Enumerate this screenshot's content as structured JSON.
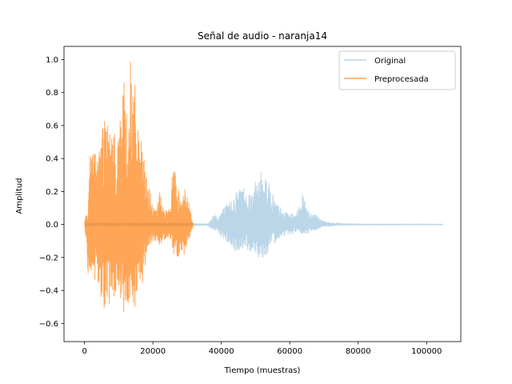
{
  "chart_data": {
    "type": "line",
    "title": "Señal de audio - naranja14",
    "xlabel": "Tiempo (muestras)",
    "ylabel": "Amplitud",
    "xlim": [
      -6000,
      110000
    ],
    "ylim": [
      -0.71,
      1.08
    ],
    "xticks": [
      0,
      20000,
      40000,
      60000,
      80000,
      100000
    ],
    "xtick_labels": [
      "0",
      "20000",
      "40000",
      "60000",
      "80000",
      "100000"
    ],
    "yticks": [
      -0.6,
      -0.4,
      -0.2,
      0.0,
      0.2,
      0.4,
      0.6,
      0.8,
      1.0
    ],
    "ytick_labels": [
      "−0.6",
      "−0.4",
      "−0.2",
      "0.0",
      "0.2",
      "0.4",
      "0.6",
      "0.8",
      "1.0"
    ],
    "grid": false,
    "legend_position": "top-right",
    "series": [
      {
        "name": "Original",
        "color": "#1f77b4",
        "alpha": 0.3,
        "x_range": [
          0,
          104800
        ],
        "envelope": {
          "x": [
            0,
            300,
            1000,
            2000,
            3000,
            5000,
            6000,
            8000,
            10000,
            12000,
            13000,
            14000,
            15000,
            16000,
            17000,
            18000,
            20000,
            22000,
            24000,
            25000,
            26000,
            28000,
            30000,
            31000,
            32000,
            33000,
            35000,
            36000,
            37000,
            38000,
            39000,
            40000,
            42000,
            44000,
            46000,
            48000,
            50000,
            51000,
            52000,
            53000,
            54000,
            55000,
            56000,
            58000,
            60000,
            62000,
            63000,
            64000,
            65000,
            66000,
            68000,
            69000,
            70000,
            72000,
            74000,
            76000,
            80000,
            85000,
            90000,
            95000,
            100000,
            104800
          ],
          "upper": [
            0.0,
            0.01,
            0.01,
            0.01,
            0.01,
            0.01,
            0.01,
            0.01,
            0.01,
            0.01,
            0.01,
            0.01,
            0.01,
            0.01,
            0.01,
            0.01,
            0.01,
            0.01,
            0.01,
            0.01,
            0.01,
            0.01,
            0.01,
            0.01,
            0.01,
            0.005,
            0.005,
            0.005,
            0.03,
            0.08,
            0.04,
            0.09,
            0.13,
            0.2,
            0.25,
            0.2,
            0.26,
            0.32,
            0.33,
            0.32,
            0.26,
            0.2,
            0.14,
            0.08,
            0.07,
            0.06,
            0.16,
            0.19,
            0.12,
            0.08,
            0.06,
            0.03,
            0.02,
            0.01,
            0.01,
            0.005,
            0.004,
            0.003,
            0.003,
            0.003,
            0.003,
            0.002
          ],
          "lower": [
            0.0,
            -0.01,
            -0.01,
            -0.01,
            -0.01,
            -0.01,
            -0.01,
            -0.01,
            -0.01,
            -0.01,
            -0.01,
            -0.01,
            -0.01,
            -0.01,
            -0.01,
            -0.01,
            -0.01,
            -0.01,
            -0.01,
            -0.01,
            -0.01,
            -0.01,
            -0.01,
            -0.01,
            -0.01,
            -0.005,
            -0.005,
            -0.005,
            -0.03,
            -0.04,
            -0.05,
            -0.08,
            -0.12,
            -0.17,
            -0.15,
            -0.16,
            -0.18,
            -0.2,
            -0.2,
            -0.2,
            -0.17,
            -0.13,
            -0.1,
            -0.07,
            -0.06,
            -0.05,
            -0.05,
            -0.07,
            -0.06,
            -0.05,
            -0.03,
            -0.02,
            -0.01,
            -0.01,
            -0.005,
            -0.004,
            -0.003,
            -0.003,
            -0.003,
            -0.002,
            -0.002,
            -0.002
          ]
        }
      },
      {
        "name": "Preprocesada",
        "color": "#ff7f0e",
        "alpha": 0.7,
        "x_range": [
          0,
          31800
        ],
        "envelope": {
          "x": [
            0,
            300,
            1000,
            1500,
            2000,
            3000,
            4000,
            5000,
            6000,
            7000,
            8000,
            9000,
            10000,
            11000,
            12000,
            12500,
            13000,
            13500,
            14000,
            15000,
            16000,
            17000,
            18000,
            19000,
            20000,
            21000,
            22000,
            23000,
            24000,
            25000,
            25500,
            26000,
            27000,
            28000,
            29000,
            30000,
            31000,
            31800
          ],
          "upper": [
            0.0,
            0.07,
            0.04,
            0.4,
            0.5,
            0.48,
            0.45,
            0.62,
            0.72,
            0.62,
            0.55,
            0.55,
            0.6,
            0.85,
            0.88,
            0.6,
            0.92,
            1.0,
            0.96,
            0.8,
            0.6,
            0.44,
            0.32,
            0.22,
            0.12,
            0.08,
            0.21,
            0.12,
            0.08,
            0.1,
            0.27,
            0.42,
            0.25,
            0.2,
            0.24,
            0.18,
            0.1,
            0.0
          ],
          "lower": [
            0.0,
            -0.07,
            -0.3,
            -0.3,
            -0.34,
            -0.38,
            -0.42,
            -0.48,
            -0.56,
            -0.5,
            -0.52,
            -0.45,
            -0.48,
            -0.52,
            -0.62,
            -0.58,
            -0.56,
            -0.63,
            -0.6,
            -0.5,
            -0.45,
            -0.36,
            -0.25,
            -0.12,
            -0.1,
            -0.1,
            -0.14,
            -0.1,
            -0.08,
            -0.08,
            -0.1,
            -0.2,
            -0.2,
            -0.22,
            -0.2,
            -0.12,
            -0.08,
            0.0
          ]
        }
      }
    ]
  }
}
